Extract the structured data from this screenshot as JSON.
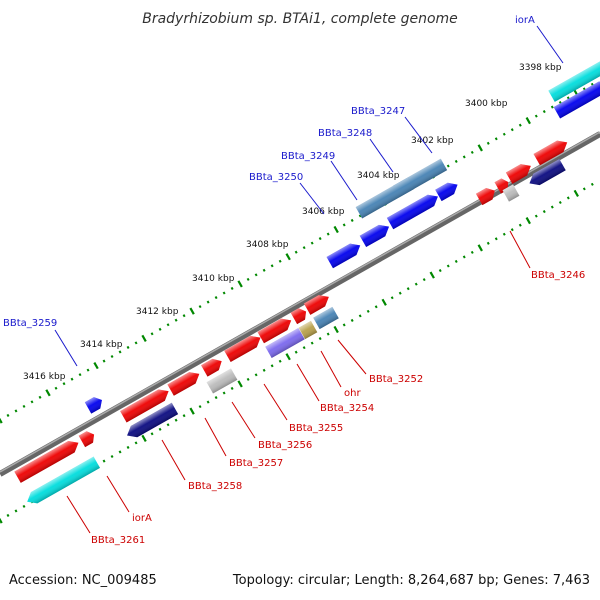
{
  "title": "Bradyrhizobium sp. BTAi1, complete genome",
  "footer": {
    "accession": "Accession: NC_009485",
    "topology": "Topology: circular; Length: 8,264,687 bp; Genes: 7,463"
  },
  "colors": {
    "forward_red": "#ee0000",
    "dark_blue": "#0a0a80",
    "blue": "#0000ee",
    "cyan": "#00dddd",
    "steel_blue": "#4682b4",
    "lavender": "#7b68ee",
    "gray": "#bbbbbb",
    "olive": "#b8a04a",
    "tick_green": "#008800",
    "backbone": "#888888"
  },
  "kbp_ticks": [
    "3398 kbp",
    "3400 kbp",
    "3402 kbp",
    "3404 kbp",
    "3406 kbp",
    "3408 kbp",
    "3410 kbp",
    "3412 kbp",
    "3414 kbp",
    "3416 kbp"
  ],
  "gene_labels_top": [
    "iorA",
    "BBta_3247",
    "BBta_3248",
    "BBta_3249",
    "BBta_3250",
    "BBta_3259"
  ],
  "gene_labels_bottom": [
    "BBta_3246",
    "BBta_3252",
    "ohr",
    "BBta_3254",
    "BBta_3255",
    "BBta_3256",
    "BBta_3257",
    "BBta_3258",
    "iorA",
    "BBta_3261"
  ]
}
